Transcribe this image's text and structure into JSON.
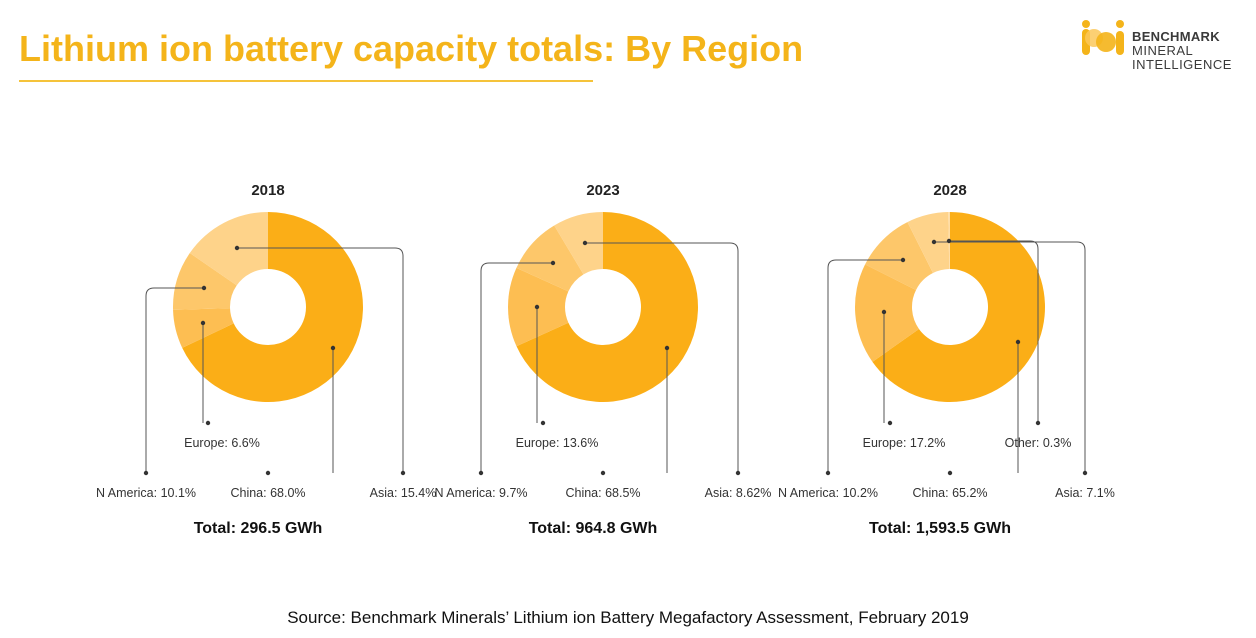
{
  "slide": {
    "title": "Lithium ion battery capacity totals: By Region",
    "source": "Source: Benchmark Minerals’ Lithium ion Battery Megafactory Assessment, February 2019"
  },
  "logo": {
    "line1": "BENCHMARK",
    "line2": "MINERAL",
    "line3": "INTELLIGENCE"
  },
  "colors": {
    "title": "#f4b41a",
    "china": "#fbae17",
    "other_shades": [
      "#fdbe52",
      "#fdc76a",
      "#fed38a",
      "#ffdda6"
    ],
    "leader": "#555555"
  },
  "chart_data": [
    {
      "type": "pie",
      "title": "2018",
      "total_label": "Total: 296.5 GWh",
      "slices": [
        {
          "name": "China",
          "value": 68.0,
          "label": "China: 68.0%"
        },
        {
          "name": "Europe",
          "value": 6.6,
          "label": "Europe: 6.6%"
        },
        {
          "name": "N America",
          "value": 10.1,
          "label": "N America: 10.1%"
        },
        {
          "name": "Asia",
          "value": 15.4,
          "label": "Asia: 15.4%"
        }
      ]
    },
    {
      "type": "pie",
      "title": "2023",
      "total_label": "Total: 964.8 GWh",
      "slices": [
        {
          "name": "China",
          "value": 68.5,
          "label": "China: 68.5%"
        },
        {
          "name": "Europe",
          "value": 13.6,
          "label": "Europe: 13.6%"
        },
        {
          "name": "N America",
          "value": 9.7,
          "label": "N America: 9.7%"
        },
        {
          "name": "Asia",
          "value": 8.62,
          "label": "Asia: 8.62%"
        }
      ]
    },
    {
      "type": "pie",
      "title": "2028",
      "total_label": "Total: 1,593.5 GWh",
      "slices": [
        {
          "name": "China",
          "value": 65.2,
          "label": "China: 65.2%"
        },
        {
          "name": "Europe",
          "value": 17.2,
          "label": "Europe: 17.2%"
        },
        {
          "name": "N America",
          "value": 10.2,
          "label": "N America: 10.2%"
        },
        {
          "name": "Asia",
          "value": 7.1,
          "label": "Asia: 7.1%"
        },
        {
          "name": "Other",
          "value": 0.3,
          "label": "Other: 0.3%"
        }
      ]
    }
  ]
}
